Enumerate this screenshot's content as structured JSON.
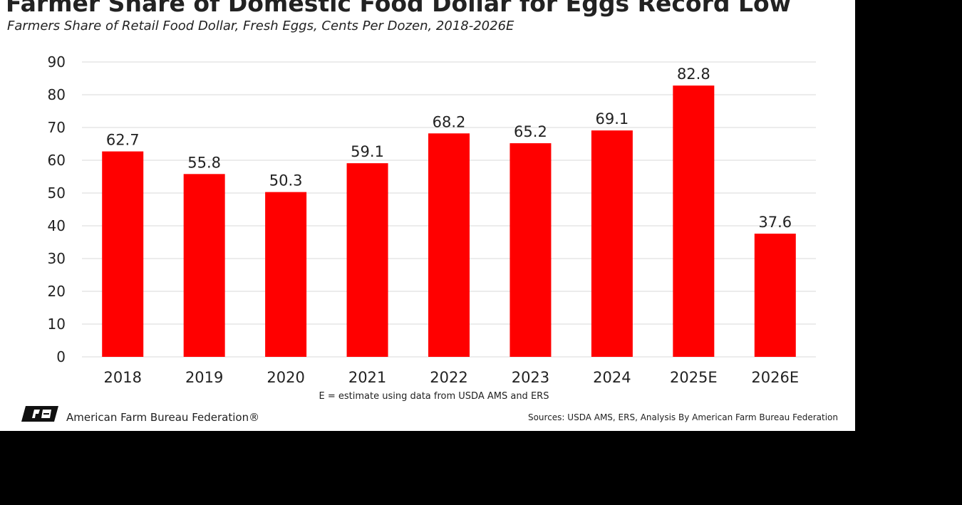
{
  "chart_data": {
    "type": "bar",
    "title": "Farmer Share of Domestic Food Dollar for Eggs Record Low",
    "subtitle": "Farmers Share of Retail Food Dollar, Fresh Eggs, Cents Per Dozen, 2018-2026E",
    "categories": [
      "2018",
      "2019",
      "2020",
      "2021",
      "2022",
      "2023",
      "2024",
      "2025E",
      "2026E"
    ],
    "values": [
      62.7,
      55.8,
      50.3,
      59.1,
      68.2,
      65.2,
      69.1,
      82.8,
      37.6
    ],
    "color": "#ff0000",
    "ylim": [
      0,
      90
    ],
    "yticks": [
      0,
      10,
      20,
      30,
      40,
      50,
      60,
      70,
      80,
      90
    ],
    "grid": true,
    "note": "E = estimate using data from USDA AMS and ERS",
    "logo_text": "American Farm Bureau Federation®",
    "source": "Sources: USDA AMS, ERS, Analysis By American Farm Bureau Federation"
  }
}
